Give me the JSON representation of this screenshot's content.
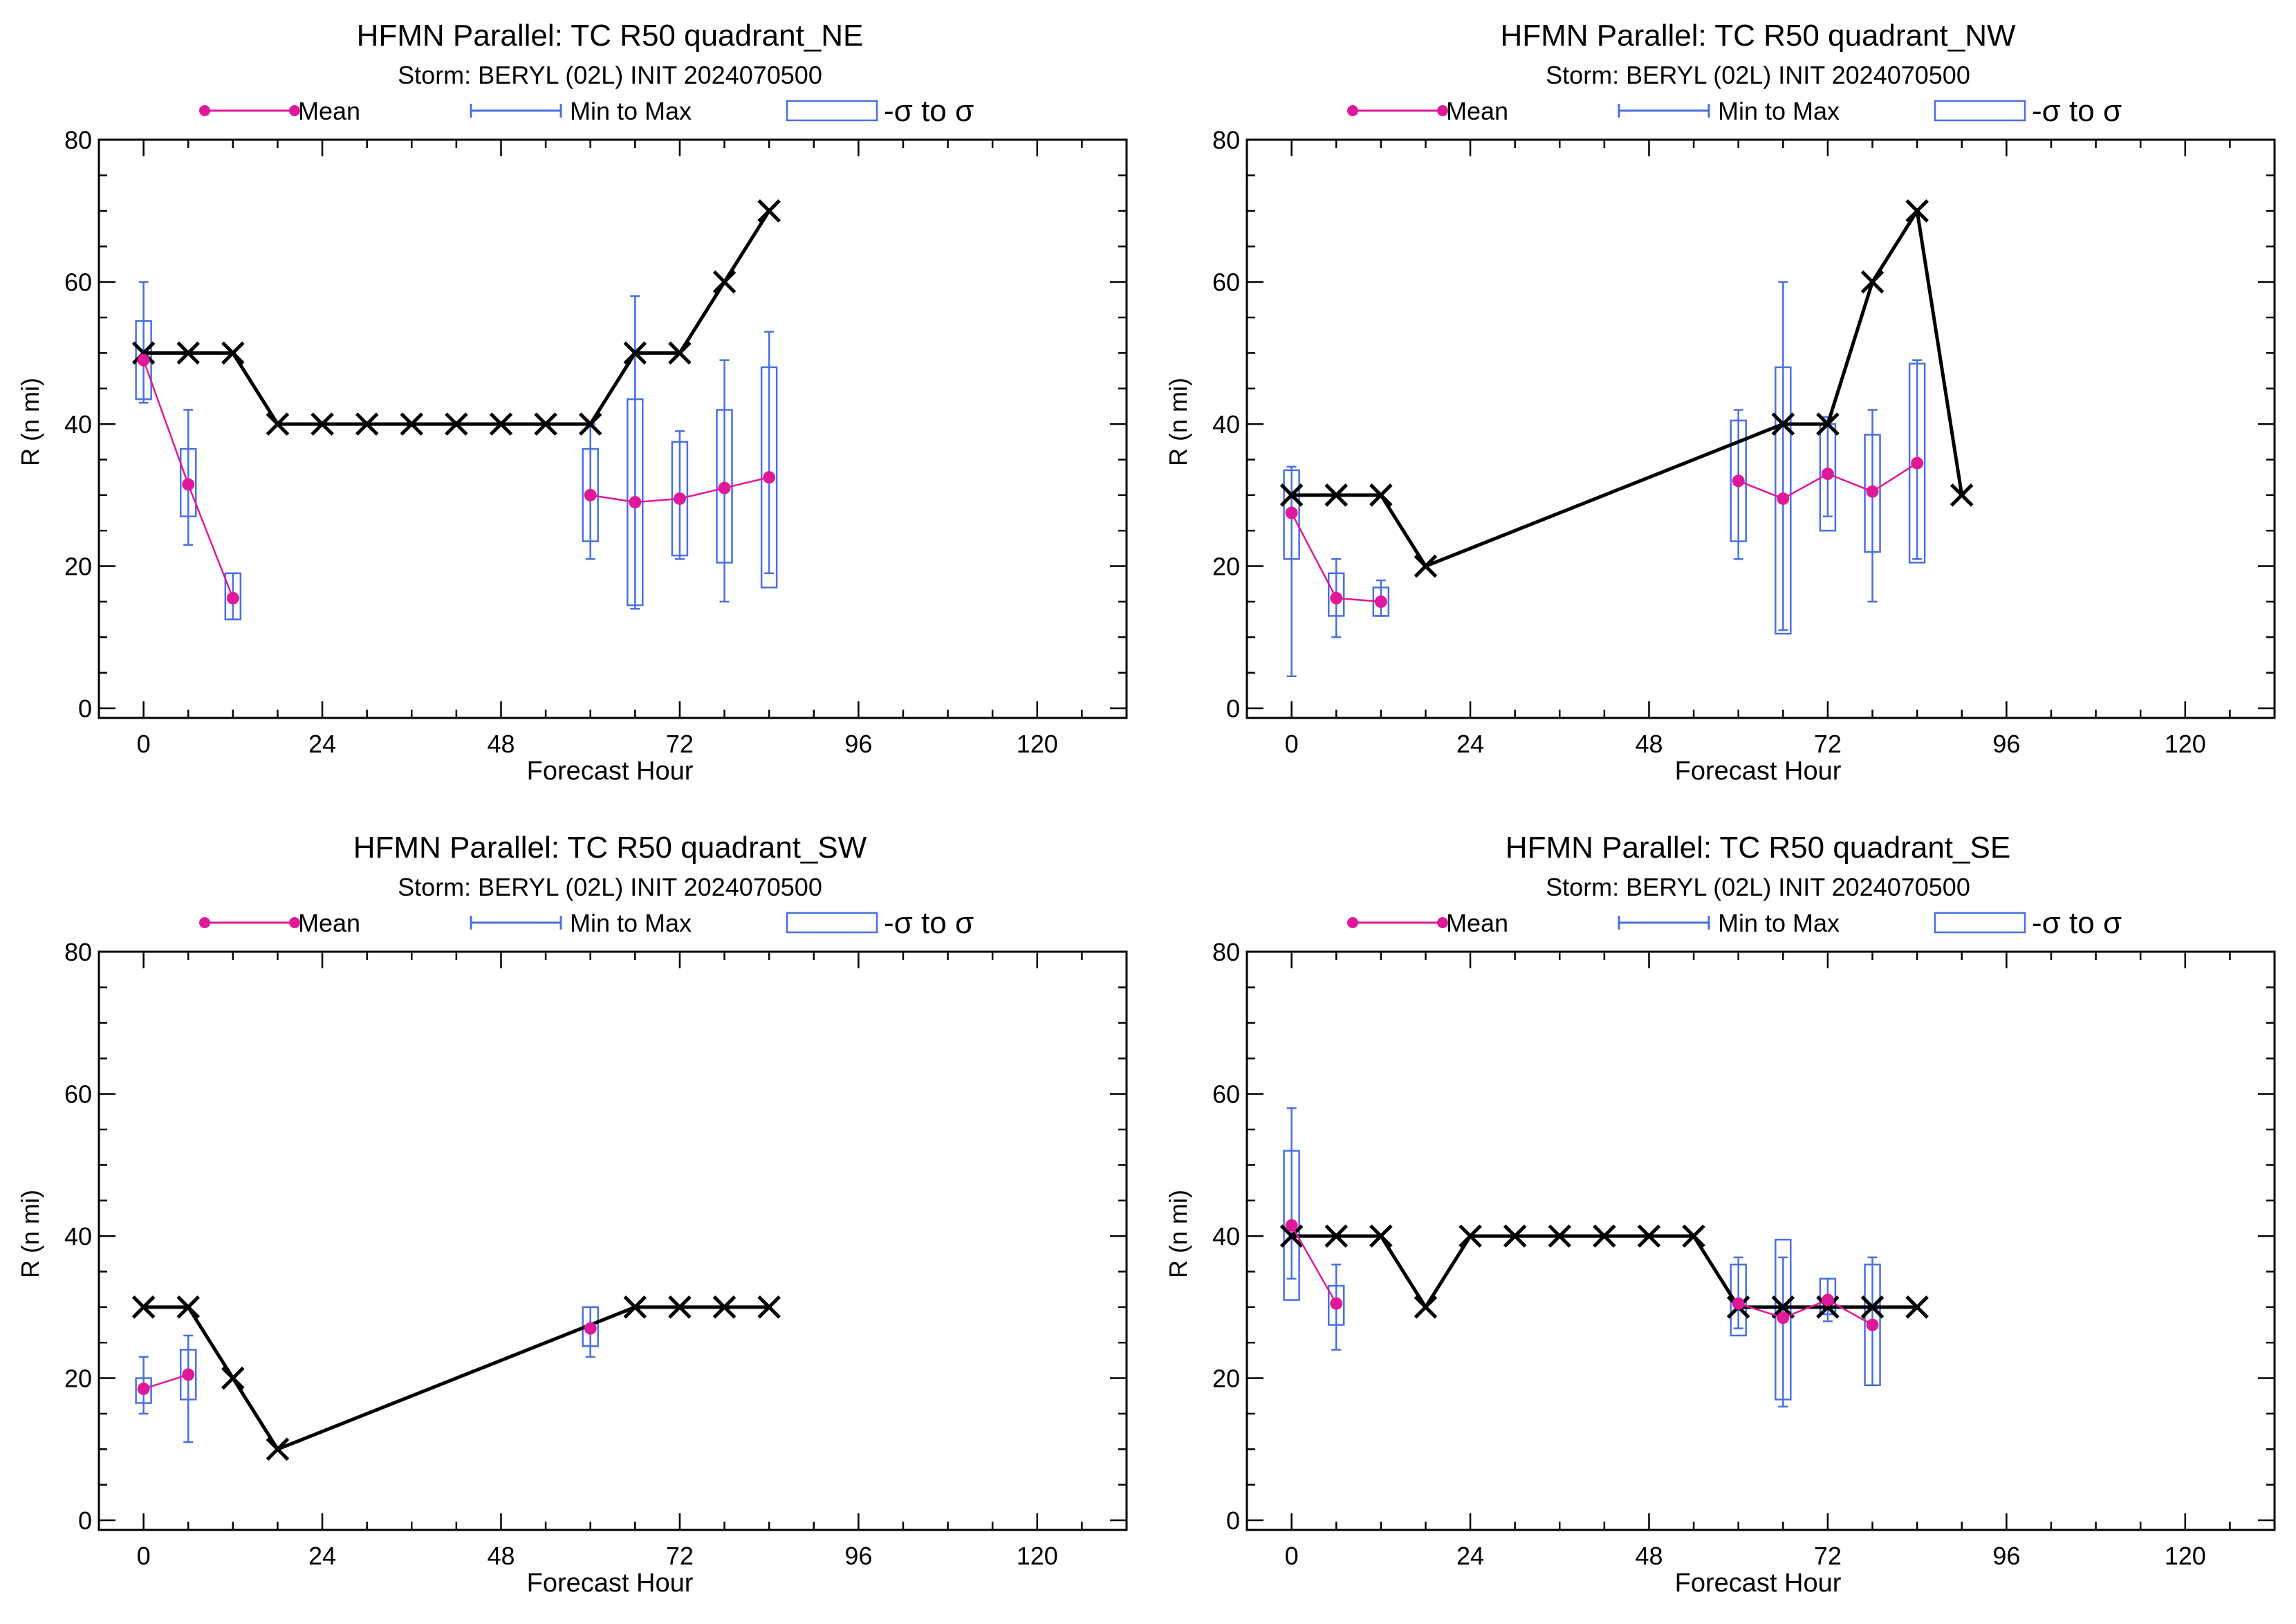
{
  "figure": {
    "legend": {
      "mean": "Mean",
      "minmax": "Min to Max",
      "sigma": "-σ to σ"
    },
    "colors": {
      "mean": "#e0189a",
      "box": "#4a6fe0",
      "obs": "#000000",
      "frame": "#000000"
    }
  },
  "chart_data": [
    {
      "type": "line",
      "title": "HFMN Parallel: TC  R50 quadrant_NE",
      "subtitle": "Storm: BERYL (02L) INIT 2024070500",
      "xlabel": "Forecast Hour",
      "ylabel": "R (n mi)",
      "xlim": [
        -6,
        132
      ],
      "ylim": [
        0,
        80
      ],
      "xticks": [
        0,
        24,
        48,
        72,
        96,
        120
      ],
      "yticks": [
        0,
        20,
        40,
        60,
        80
      ],
      "observed": {
        "x": [
          0,
          6,
          12,
          18,
          24,
          30,
          36,
          42,
          48,
          54,
          60,
          66,
          72,
          78,
          84
        ],
        "y": [
          50,
          50,
          50,
          40,
          40,
          40,
          40,
          40,
          40,
          40,
          40,
          50,
          50,
          60,
          70
        ]
      },
      "mean": {
        "x": [
          0,
          6,
          12,
          60,
          66,
          72,
          78,
          84
        ],
        "y": [
          49,
          31.5,
          15.5,
          30,
          29,
          29.5,
          31,
          32.5
        ]
      },
      "boxes": [
        {
          "x": 0,
          "min": 43,
          "max": 60,
          "low": 43.5,
          "high": 54.5
        },
        {
          "x": 6,
          "min": 23,
          "max": 42,
          "low": 27,
          "high": 36.5
        },
        {
          "x": 12,
          "min": 12.5,
          "max": 19,
          "low": 12.5,
          "high": 19
        },
        {
          "x": 60,
          "min": 21,
          "max": 40,
          "low": 23.5,
          "high": 36.5
        },
        {
          "x": 66,
          "min": 14,
          "max": 58,
          "low": 14.5,
          "high": 43.5
        },
        {
          "x": 72,
          "min": 21,
          "max": 39,
          "low": 21.5,
          "high": 37.5
        },
        {
          "x": 78,
          "min": 15,
          "max": 49,
          "low": 20.5,
          "high": 42
        },
        {
          "x": 84,
          "min": 19,
          "max": 53,
          "low": 17,
          "high": 48
        }
      ]
    },
    {
      "type": "line",
      "title": "HFMN Parallel: TC  R50 quadrant_NW",
      "subtitle": "Storm: BERYL (02L) INIT 2024070500",
      "xlabel": "Forecast Hour",
      "ylabel": "R (n mi)",
      "xlim": [
        -6,
        132
      ],
      "ylim": [
        0,
        80
      ],
      "xticks": [
        0,
        24,
        48,
        72,
        96,
        120
      ],
      "yticks": [
        0,
        20,
        40,
        60,
        80
      ],
      "observed": {
        "x": [
          0,
          6,
          12,
          18,
          66,
          72,
          78,
          84,
          90
        ],
        "y": [
          30,
          30,
          30,
          20,
          40,
          40,
          60,
          70,
          30
        ]
      },
      "mean": {
        "x": [
          0,
          6,
          12,
          60,
          66,
          72,
          78,
          84
        ],
        "y": [
          27.5,
          15.5,
          15,
          32,
          29.5,
          33,
          30.5,
          34.5
        ]
      },
      "boxes": [
        {
          "x": 0,
          "min": 4.5,
          "max": 34,
          "low": 21,
          "high": 33.5
        },
        {
          "x": 6,
          "min": 10,
          "max": 21,
          "low": 13,
          "high": 19
        },
        {
          "x": 12,
          "min": 13,
          "max": 18,
          "low": 13,
          "high": 17
        },
        {
          "x": 60,
          "min": 21,
          "max": 42,
          "low": 23.5,
          "high": 40.5
        },
        {
          "x": 66,
          "min": 11,
          "max": 60,
          "low": 10.5,
          "high": 48
        },
        {
          "x": 72,
          "min": 27,
          "max": 41,
          "low": 25,
          "high": 40
        },
        {
          "x": 78,
          "min": 15,
          "max": 42,
          "low": 22,
          "high": 38.5
        },
        {
          "x": 84,
          "min": 21,
          "max": 49,
          "low": 20.5,
          "high": 48.5
        }
      ]
    },
    {
      "type": "line",
      "title": "HFMN Parallel: TC  R50 quadrant_SW",
      "subtitle": "Storm: BERYL (02L) INIT 2024070500",
      "xlabel": "Forecast Hour",
      "ylabel": "R (n mi)",
      "xlim": [
        -6,
        132
      ],
      "ylim": [
        0,
        80
      ],
      "xticks": [
        0,
        24,
        48,
        72,
        96,
        120
      ],
      "yticks": [
        0,
        20,
        40,
        60,
        80
      ],
      "observed": {
        "x": [
          0,
          6,
          12,
          18,
          66,
          72,
          78,
          84
        ],
        "y": [
          30,
          30,
          20,
          10,
          30,
          30,
          30,
          30
        ]
      },
      "mean": {
        "x": [
          0,
          6,
          60
        ],
        "y": [
          18.5,
          20.5,
          27
        ]
      },
      "boxes": [
        {
          "x": 0,
          "min": 15,
          "max": 23,
          "low": 16.5,
          "high": 20
        },
        {
          "x": 6,
          "min": 11,
          "max": 26,
          "low": 17,
          "high": 24
        },
        {
          "x": 60,
          "min": 23,
          "max": 30,
          "low": 24.5,
          "high": 30
        }
      ]
    },
    {
      "type": "line",
      "title": "HFMN Parallel: TC  R50 quadrant_SE",
      "subtitle": "Storm: BERYL (02L) INIT 2024070500",
      "xlabel": "Forecast Hour",
      "ylabel": "R (n mi)",
      "xlim": [
        -6,
        132
      ],
      "ylim": [
        0,
        80
      ],
      "xticks": [
        0,
        24,
        48,
        72,
        96,
        120
      ],
      "yticks": [
        0,
        20,
        40,
        60,
        80
      ],
      "observed": {
        "x": [
          0,
          6,
          12,
          18,
          24,
          30,
          36,
          42,
          48,
          54,
          60,
          66,
          72,
          78,
          84
        ],
        "y": [
          40,
          40,
          40,
          30,
          40,
          40,
          40,
          40,
          40,
          40,
          30,
          30,
          30,
          30,
          30
        ]
      },
      "mean": {
        "x": [
          0,
          6,
          60,
          66,
          72,
          78
        ],
        "y": [
          41.5,
          30.5,
          30.5,
          28.5,
          31,
          27.5
        ]
      },
      "boxes": [
        {
          "x": 0,
          "min": 34,
          "max": 58,
          "low": 31,
          "high": 52
        },
        {
          "x": 6,
          "min": 24,
          "max": 36,
          "low": 27.5,
          "high": 33
        },
        {
          "x": 60,
          "min": 27,
          "max": 37,
          "low": 26,
          "high": 36
        },
        {
          "x": 66,
          "min": 16,
          "max": 37,
          "low": 17,
          "high": 39.5
        },
        {
          "x": 72,
          "min": 28,
          "max": 34,
          "low": 29,
          "high": 34
        },
        {
          "x": 78,
          "min": 19,
          "max": 37,
          "low": 19,
          "high": 36
        }
      ]
    }
  ]
}
